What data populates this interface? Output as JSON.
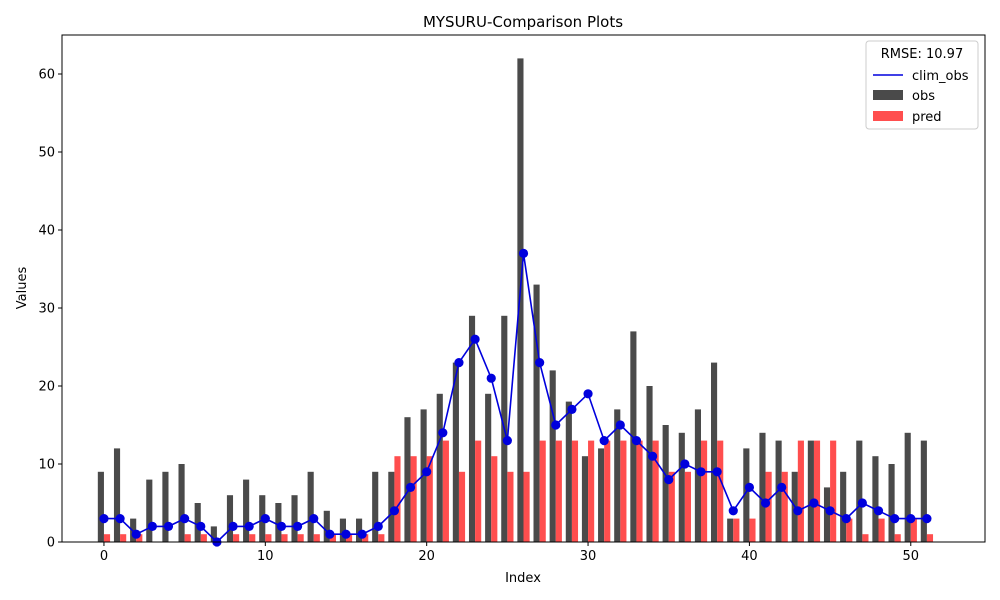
{
  "chart_data": {
    "type": "bar",
    "title": "MYSURU-Comparison Plots",
    "xlabel": "Index",
    "ylabel": "Values",
    "xlim": [
      -2.6,
      54.6
    ],
    "ylim": [
      0,
      65
    ],
    "xticks": [
      0,
      10,
      20,
      30,
      40,
      50
    ],
    "yticks": [
      0,
      10,
      20,
      30,
      40,
      50,
      60
    ],
    "legend": {
      "title": "RMSE: 10.97",
      "placement": "top-right",
      "entries": [
        "clim_obs",
        "obs",
        "pred"
      ]
    },
    "x": [
      0,
      1,
      2,
      3,
      4,
      5,
      6,
      7,
      8,
      9,
      10,
      11,
      12,
      13,
      14,
      15,
      16,
      17,
      18,
      19,
      20,
      21,
      22,
      23,
      24,
      25,
      26,
      27,
      28,
      29,
      30,
      31,
      32,
      33,
      34,
      35,
      36,
      37,
      38,
      39,
      40,
      41,
      42,
      43,
      44,
      45,
      46,
      47,
      48,
      49,
      50,
      51
    ],
    "series": [
      {
        "name": "obs",
        "kind": "bar",
        "color": "#404040",
        "values": [
          9,
          12,
          3,
          8,
          9,
          10,
          5,
          2,
          6,
          8,
          6,
          5,
          6,
          9,
          4,
          3,
          3,
          9,
          9,
          16,
          17,
          19,
          23,
          29,
          19,
          29,
          62,
          33,
          22,
          18,
          11,
          12,
          17,
          27,
          20,
          15,
          14,
          17,
          23,
          3,
          12,
          14,
          13,
          9,
          13,
          7,
          9,
          13,
          11,
          10,
          14,
          13
        ]
      },
      {
        "name": "pred",
        "kind": "bar",
        "color": "#ff4444",
        "values": [
          1,
          1,
          1,
          0,
          0,
          1,
          1,
          0,
          1,
          1,
          1,
          1,
          1,
          1,
          1,
          1,
          1,
          1,
          11,
          11,
          11,
          13,
          9,
          13,
          11,
          9,
          9,
          13,
          13,
          13,
          13,
          13,
          13,
          13,
          13,
          9,
          9,
          13,
          13,
          3,
          3,
          9,
          9,
          13,
          13,
          13,
          3,
          1,
          3,
          1,
          3,
          1
        ]
      },
      {
        "name": "clim_obs",
        "kind": "line",
        "color": "#0000dd",
        "values": [
          3,
          3,
          1,
          2,
          2,
          3,
          2,
          0,
          2,
          2,
          3,
          2,
          2,
          3,
          1,
          1,
          1,
          2,
          4,
          7,
          9,
          14,
          23,
          26,
          21,
          13,
          37,
          23,
          15,
          17,
          19,
          13,
          15,
          13,
          11,
          8,
          10,
          9,
          9,
          4,
          7,
          5,
          7,
          4,
          5,
          4,
          3,
          5,
          4,
          3,
          3,
          3
        ]
      }
    ]
  }
}
